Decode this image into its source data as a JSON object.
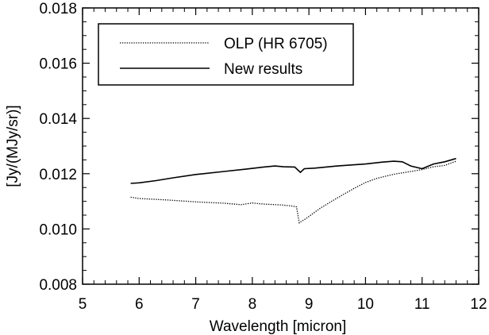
{
  "chart_data": {
    "type": "line",
    "title": "",
    "xlabel": "Wavelength [micron]",
    "ylabel": "[Jy/(MJy/sr)]",
    "xlim": [
      5,
      12
    ],
    "ylim": [
      0.008,
      0.018
    ],
    "x_ticks": [
      5,
      6,
      7,
      8,
      9,
      10,
      11,
      12
    ],
    "x_tick_labels": [
      "5",
      "6",
      "7",
      "8",
      "9",
      "10",
      "11",
      "12"
    ],
    "y_ticks": [
      0.008,
      0.01,
      0.012,
      0.014,
      0.016,
      0.018
    ],
    "y_tick_labels": [
      "0.008",
      "0.010",
      "0.012",
      "0.014",
      "0.016",
      "0.018"
    ],
    "grid": false,
    "legend_position": "top-left",
    "series": [
      {
        "name": "OLP (HR 6705)",
        "style": "dotted",
        "color": "#000000",
        "x": [
          5.85,
          6.0,
          6.2,
          6.5,
          7.0,
          7.5,
          7.8,
          8.0,
          8.2,
          8.5,
          8.7,
          8.78,
          8.83,
          8.87,
          8.93,
          9.0,
          9.2,
          9.5,
          9.8,
          10.0,
          10.2,
          10.5,
          10.8,
          11.0,
          11.2,
          11.4,
          11.6
        ],
        "y": [
          0.01115,
          0.0111,
          0.01108,
          0.01105,
          0.01098,
          0.01093,
          0.01088,
          0.01094,
          0.0109,
          0.01087,
          0.01083,
          0.0108,
          0.01022,
          0.01028,
          0.01035,
          0.01045,
          0.01075,
          0.01112,
          0.01147,
          0.01168,
          0.01183,
          0.01198,
          0.01208,
          0.01215,
          0.01225,
          0.0123,
          0.01245
        ]
      },
      {
        "name": "New results",
        "style": "solid",
        "color": "#000000",
        "x": [
          5.85,
          6.0,
          6.3,
          6.6,
          7.0,
          7.5,
          7.9,
          8.2,
          8.4,
          8.55,
          8.75,
          8.85,
          8.92,
          9.1,
          9.5,
          10.0,
          10.3,
          10.5,
          10.65,
          10.8,
          11.0,
          11.2,
          11.4,
          11.6
        ],
        "y": [
          0.01165,
          0.01167,
          0.01175,
          0.01185,
          0.01197,
          0.01208,
          0.01217,
          0.01224,
          0.01228,
          0.01225,
          0.01224,
          0.01205,
          0.01218,
          0.0122,
          0.01228,
          0.01235,
          0.01242,
          0.01245,
          0.01243,
          0.01228,
          0.01218,
          0.01235,
          0.01243,
          0.01255
        ]
      }
    ]
  }
}
